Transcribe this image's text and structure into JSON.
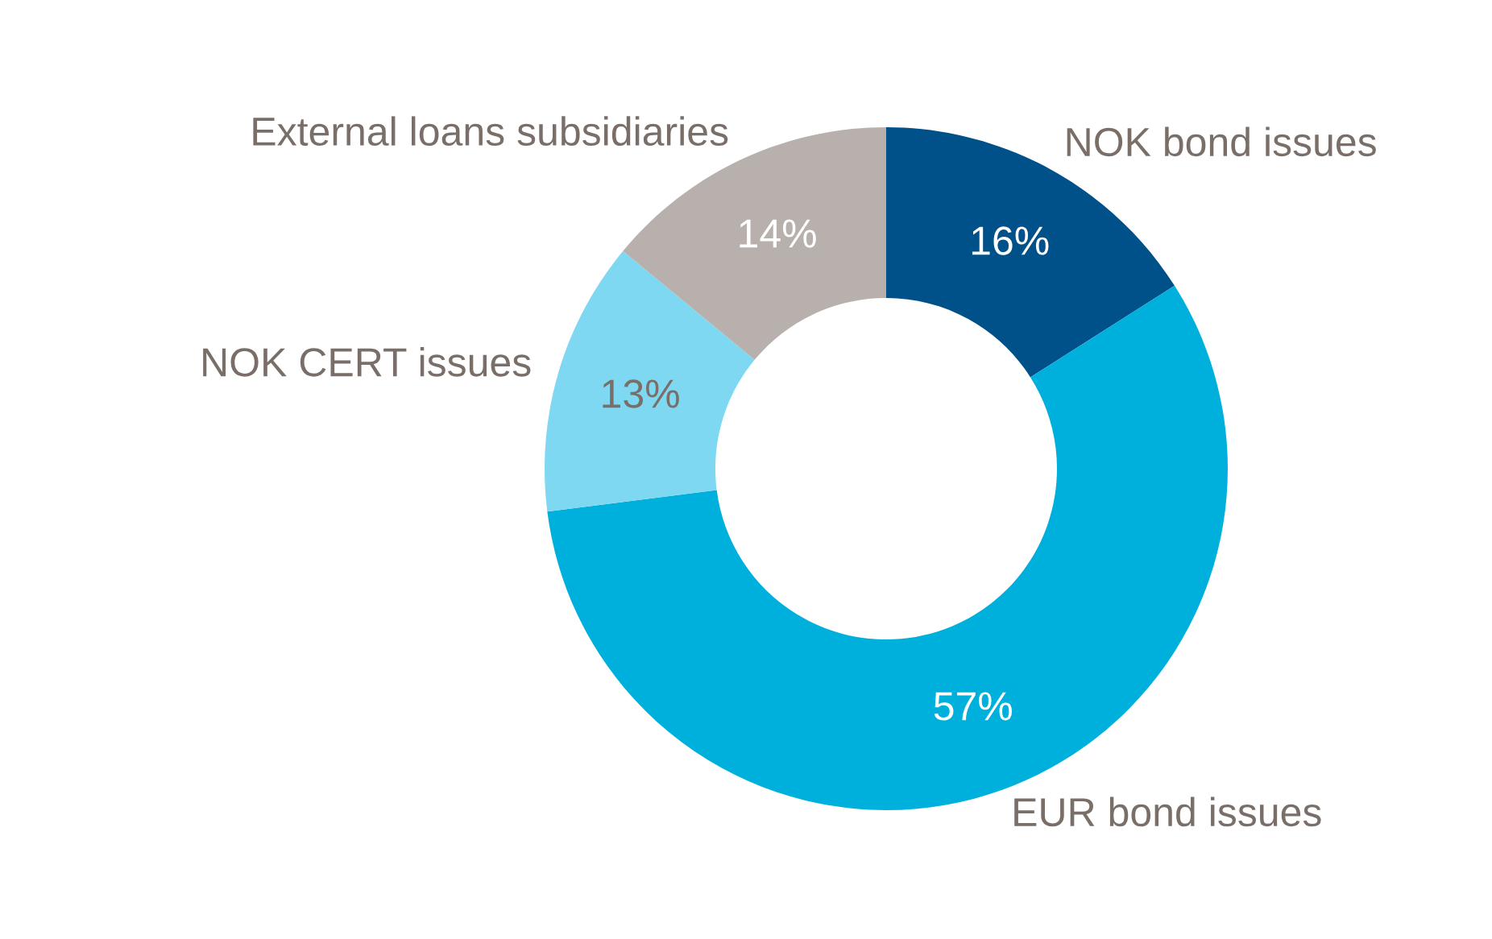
{
  "chart_data": {
    "type": "donut",
    "categories": [
      "NOK bond issues",
      "EUR bond issues",
      "NOK CERT issues",
      "External loans subsidiaries"
    ],
    "values": [
      16,
      57,
      13,
      14
    ],
    "colors": [
      "#00508a",
      "#00b0dc",
      "#7fd8f2",
      "#b8b0ac"
    ],
    "value_labels": [
      "16%",
      "57%",
      "13%",
      "14%"
    ],
    "legend": false
  }
}
